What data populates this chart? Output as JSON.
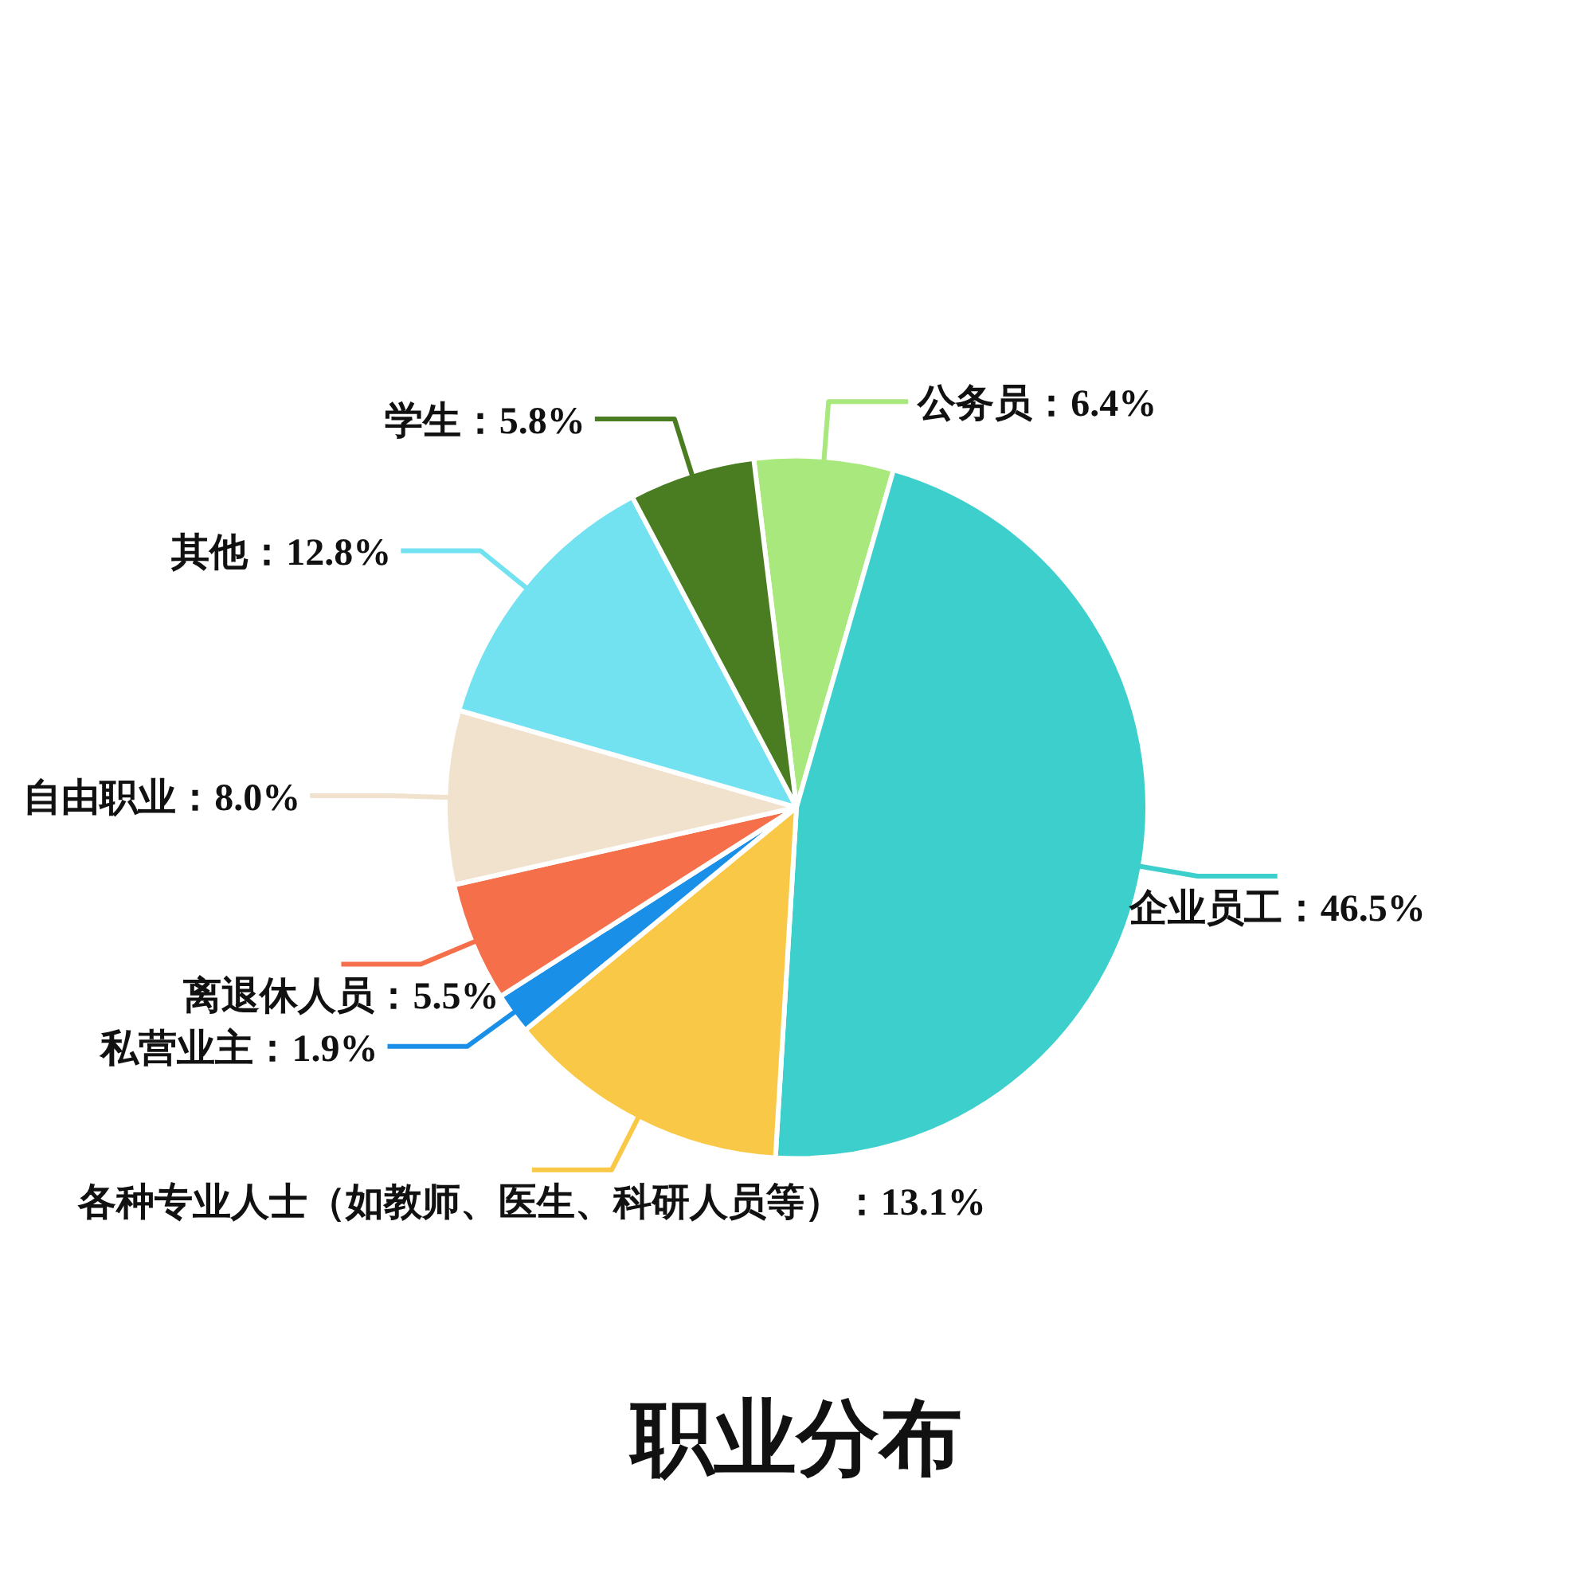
{
  "chart_data": {
    "type": "pie",
    "title": "职业分布",
    "categories": [
      "公务员",
      "企业员工",
      "各种专业人士（如教师、医生、科研人员等）",
      "私营业主",
      "离退休人员",
      "自由职业",
      "其他",
      "学生"
    ],
    "values": [
      6.4,
      46.5,
      13.1,
      1.9,
      5.5,
      8.0,
      12.8,
      5.8
    ],
    "value_labels": [
      "6.4%",
      "46.5%",
      "13.1%",
      "1.9%",
      "5.5%",
      "8.0%",
      "12.8%",
      "5.8%"
    ],
    "colors": [
      "#a8e87c",
      "#3ccfcc",
      "#f9c846",
      "#1a8fe8",
      "#f5704a",
      "#f0e2cc",
      "#72e2f0",
      "#4a7c22"
    ],
    "legend": false
  }
}
